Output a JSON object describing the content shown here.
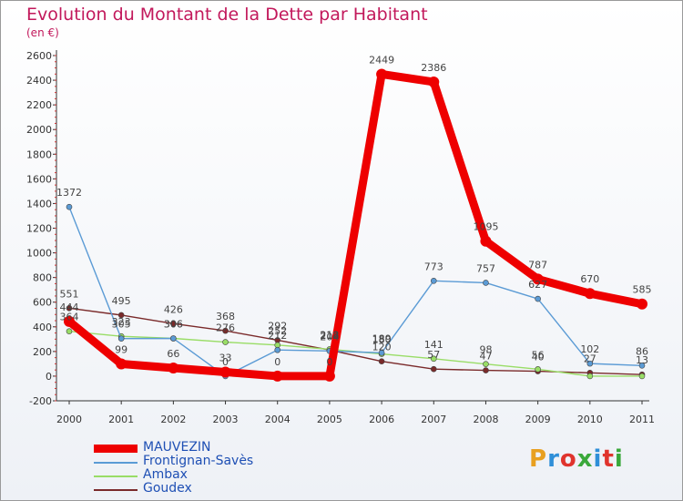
{
  "header": {
    "title": "Evolution du Montant de la Dette par Habitant",
    "subtitle": "(en €)"
  },
  "logo": {
    "text": "Proxiti",
    "colors": [
      "#e8a020",
      "#2f8fd8",
      "#e0342d",
      "#3aa83a",
      "#2f8fd8",
      "#e0342d",
      "#3aa83a"
    ]
  },
  "chart_data": {
    "type": "line",
    "title": "Evolution du Montant de la Dette par Habitant",
    "ylabel": "(en €)",
    "xlabel": "",
    "x": [
      "2000",
      "2001",
      "2002",
      "2003",
      "2004",
      "2005",
      "2006",
      "2007",
      "2008",
      "2009",
      "2010",
      "2011"
    ],
    "ylim": [
      -200,
      2600
    ],
    "yticks": [
      "-200",
      "0",
      "200",
      "400",
      "600",
      "800",
      "1000",
      "1200",
      "1400",
      "1600",
      "1800",
      "2000",
      "2200",
      "2400",
      "2600"
    ],
    "grid": false,
    "legend_position": "bottom-left",
    "series": [
      {
        "name": "MAUVEZIN",
        "color": "#ee0000",
        "values": [
          444,
          99,
          66,
          33,
          0,
          0,
          2449,
          2386,
          1095,
          787,
          670,
          585
        ],
        "labels": [
          "444",
          "99",
          "66",
          "33",
          "0",
          "0",
          "2449",
          "2386",
          "1095",
          "787",
          "670",
          "585"
        ]
      },
      {
        "name": "Frontignan-Savès",
        "color": "#5b9bd5",
        "values": [
          1372,
          305,
          306,
          0,
          212,
          204,
          189,
          773,
          757,
          627,
          102,
          86
        ],
        "labels": [
          "1372",
          "305",
          "306",
          "0",
          "212",
          "204",
          "189",
          "773",
          "757",
          "627",
          "102",
          "86"
        ]
      },
      {
        "name": "Ambax",
        "color": "#99dd66",
        "values": [
          364,
          323,
          306,
          276,
          252,
          218,
          180,
          141,
          98,
          56,
          0,
          0
        ],
        "labels": [
          "364",
          "323",
          "306",
          "276",
          "252",
          "218",
          "180",
          "141",
          "98",
          "56",
          "",
          ""
        ]
      },
      {
        "name": "Goudex",
        "color": "#7a2a2a",
        "values": [
          551,
          495,
          426,
          368,
          292,
          212,
          120,
          57,
          47,
          40,
          27,
          13
        ],
        "labels": [
          "551",
          "495",
          "426",
          "368",
          "292",
          "212",
          "120",
          "57",
          "47",
          "40",
          "27",
          "13"
        ]
      }
    ]
  }
}
